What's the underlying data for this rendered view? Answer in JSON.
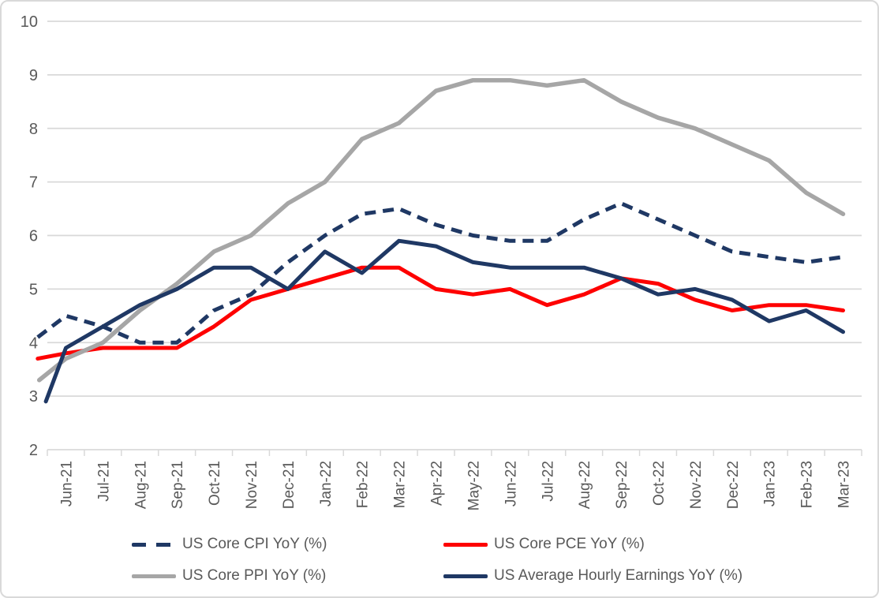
{
  "chart_data": {
    "type": "line",
    "title": "",
    "categories": [
      "Jun-21",
      "Jul-21",
      "Aug-21",
      "Sep-21",
      "Oct-21",
      "Nov-21",
      "Dec-21",
      "Jan-22",
      "Feb-22",
      "Mar-22",
      "Apr-22",
      "May-22",
      "Jun-22",
      "Jul-22",
      "Aug-22",
      "Sep-22",
      "Oct-22",
      "Nov-22",
      "Dec-22",
      "Jan-23",
      "Feb-23",
      "Mar-23"
    ],
    "y_axis": {
      "min": 2,
      "max": 10,
      "step": 1,
      "tick_labels": [
        "2",
        "3",
        "4",
        "5",
        "6",
        "7",
        "8",
        "9",
        "10"
      ]
    },
    "x_axis": {
      "label_rotation": -90
    },
    "grid": true,
    "legend_position": "bottom",
    "series": [
      {
        "name": "US Core CPI YoY (%)",
        "color": "#1f3864",
        "style": "dashed",
        "values": [
          4.5,
          4.3,
          4.0,
          4.0,
          4.6,
          4.9,
          5.5,
          6.0,
          6.4,
          6.5,
          6.2,
          6.0,
          5.9,
          5.9,
          6.3,
          6.6,
          6.3,
          6.0,
          5.7,
          5.6,
          5.5,
          5.6
        ],
        "lead_in": {
          "month_offset": -0.76,
          "value": 4.1
        }
      },
      {
        "name": "US Core PCE YoY (%)",
        "color": "#fe0000",
        "style": "solid",
        "values": [
          3.8,
          3.9,
          3.9,
          3.9,
          4.3,
          4.8,
          5.0,
          5.2,
          5.4,
          5.4,
          5.0,
          4.9,
          5.0,
          4.7,
          4.9,
          5.2,
          5.1,
          4.8,
          4.6,
          4.7,
          4.7,
          4.6
        ],
        "lead_in": {
          "month_offset": -0.76,
          "value": 3.7
        }
      },
      {
        "name": "US Core PPI YoY (%)",
        "color": "#a6a6a6",
        "style": "solid",
        "values": [
          3.7,
          4.0,
          4.6,
          5.1,
          5.7,
          6.0,
          6.6,
          7.0,
          7.8,
          8.1,
          8.7,
          8.9,
          8.9,
          8.8,
          8.9,
          8.5,
          8.2,
          8.0,
          7.7,
          7.4,
          6.8,
          6.4
        ],
        "lead_in": {
          "month_offset": -0.72,
          "value": 3.3
        }
      },
      {
        "name": "US Average Hourly Earnings YoY (%)",
        "color": "#1f3864",
        "style": "solid",
        "values": [
          3.9,
          4.3,
          4.7,
          5.0,
          5.4,
          5.4,
          5.0,
          5.7,
          5.3,
          5.9,
          5.8,
          5.5,
          5.4,
          5.4,
          5.4,
          5.2,
          4.9,
          5.0,
          4.8,
          4.4,
          4.6,
          4.2
        ],
        "lead_in": {
          "month_offset": -0.54,
          "value": 2.9
        }
      }
    ],
    "colors": {
      "gridline": "#d9d9d9",
      "axis_line": "#d9d9d9",
      "tick": "#d9d9d9",
      "axis_text": "#595959",
      "background": "#ffffff",
      "frame_border": "#d9d9d9"
    }
  }
}
